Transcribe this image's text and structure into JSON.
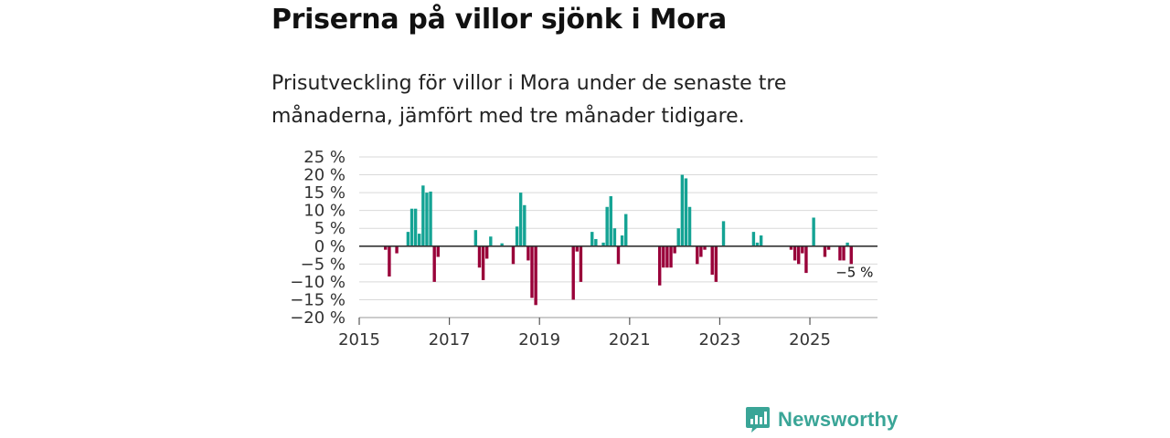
{
  "title": "Priserna på villor sjönk i Mora",
  "subtitle": "Prisutveckling för villor i Mora under de senaste tre månaderna, jämfört med tre månader tidigare.",
  "brand": {
    "name": "Newsworthy",
    "icon": "newsworthy-logo-icon",
    "color": "#3aa597"
  },
  "colors": {
    "positive": "#14a394",
    "negative": "#990039",
    "grid": "#d9d9d9",
    "zero": "#333333"
  },
  "chart_data": {
    "type": "bar",
    "title": "Priserna på villor sjönk i Mora",
    "xlabel": "",
    "ylabel": "",
    "unit": "%",
    "ylim": [
      -20,
      25
    ],
    "yticks": [
      25,
      20,
      15,
      10,
      5,
      0,
      -5,
      -10,
      -15,
      -20
    ],
    "ytick_labels": [
      "25 %",
      "20 %",
      "15 %",
      "10 %",
      "5 %",
      "0 %",
      "−5 %",
      "−10 %",
      "−15 %",
      "−20 %"
    ],
    "xlim": [
      2015.0,
      2026.5
    ],
    "xticks": [
      2015,
      2017,
      2019,
      2021,
      2023,
      2025
    ],
    "xtick_labels": [
      "2015",
      "2017",
      "2019",
      "2021",
      "2023",
      "2025"
    ],
    "grid": true,
    "annotation": {
      "text": "−5 %",
      "x": 2026.0,
      "value": -5
    },
    "series": [
      {
        "name": "Prisutveckling",
        "points": [
          {
            "x": 2015.583,
            "value": -1
          },
          {
            "x": 2015.667,
            "value": -8.5
          },
          {
            "x": 2015.833,
            "value": -2
          },
          {
            "x": 2016.083,
            "value": 4
          },
          {
            "x": 2016.167,
            "value": 10.5
          },
          {
            "x": 2016.25,
            "value": 10.5
          },
          {
            "x": 2016.333,
            "value": 3.5
          },
          {
            "x": 2016.417,
            "value": 17
          },
          {
            "x": 2016.5,
            "value": 15
          },
          {
            "x": 2016.583,
            "value": 15.3
          },
          {
            "x": 2016.667,
            "value": -10
          },
          {
            "x": 2016.75,
            "value": -3
          },
          {
            "x": 2017.583,
            "value": 4.5
          },
          {
            "x": 2017.667,
            "value": -6
          },
          {
            "x": 2017.75,
            "value": -9.5
          },
          {
            "x": 2017.833,
            "value": -3.5
          },
          {
            "x": 2017.917,
            "value": 2.7
          },
          {
            "x": 2018.167,
            "value": 0.8
          },
          {
            "x": 2018.417,
            "value": -5
          },
          {
            "x": 2018.5,
            "value": 5.5
          },
          {
            "x": 2018.583,
            "value": 15
          },
          {
            "x": 2018.667,
            "value": 11.5
          },
          {
            "x": 2018.75,
            "value": -4
          },
          {
            "x": 2018.833,
            "value": -14.5
          },
          {
            "x": 2018.917,
            "value": -16.5
          },
          {
            "x": 2019.75,
            "value": -15
          },
          {
            "x": 2019.833,
            "value": -1.5
          },
          {
            "x": 2019.917,
            "value": -10
          },
          {
            "x": 2020.167,
            "value": 4
          },
          {
            "x": 2020.25,
            "value": 2
          },
          {
            "x": 2020.417,
            "value": 1
          },
          {
            "x": 2020.5,
            "value": 11
          },
          {
            "x": 2020.583,
            "value": 14
          },
          {
            "x": 2020.667,
            "value": 5
          },
          {
            "x": 2020.75,
            "value": -5
          },
          {
            "x": 2020.833,
            "value": 3
          },
          {
            "x": 2020.917,
            "value": 9
          },
          {
            "x": 2021.667,
            "value": -11
          },
          {
            "x": 2021.75,
            "value": -6
          },
          {
            "x": 2021.833,
            "value": -6
          },
          {
            "x": 2021.917,
            "value": -6
          },
          {
            "x": 2022.0,
            "value": -2
          },
          {
            "x": 2022.083,
            "value": 5
          },
          {
            "x": 2022.167,
            "value": 20
          },
          {
            "x": 2022.25,
            "value": 19
          },
          {
            "x": 2022.333,
            "value": 11
          },
          {
            "x": 2022.5,
            "value": -5
          },
          {
            "x": 2022.583,
            "value": -3
          },
          {
            "x": 2022.667,
            "value": -1
          },
          {
            "x": 2022.833,
            "value": -8
          },
          {
            "x": 2022.917,
            "value": -10
          },
          {
            "x": 2023.083,
            "value": 7
          },
          {
            "x": 2023.75,
            "value": 4
          },
          {
            "x": 2023.833,
            "value": 1
          },
          {
            "x": 2023.917,
            "value": 3
          },
          {
            "x": 2024.583,
            "value": -1
          },
          {
            "x": 2024.667,
            "value": -4
          },
          {
            "x": 2024.75,
            "value": -5
          },
          {
            "x": 2024.833,
            "value": -2
          },
          {
            "x": 2024.917,
            "value": -7.5
          },
          {
            "x": 2025.083,
            "value": 8
          },
          {
            "x": 2025.333,
            "value": -3
          },
          {
            "x": 2025.417,
            "value": -1
          },
          {
            "x": 2025.667,
            "value": -4
          },
          {
            "x": 2025.75,
            "value": -4
          },
          {
            "x": 2025.833,
            "value": 1
          },
          {
            "x": 2025.917,
            "value": -5
          }
        ]
      }
    ]
  }
}
